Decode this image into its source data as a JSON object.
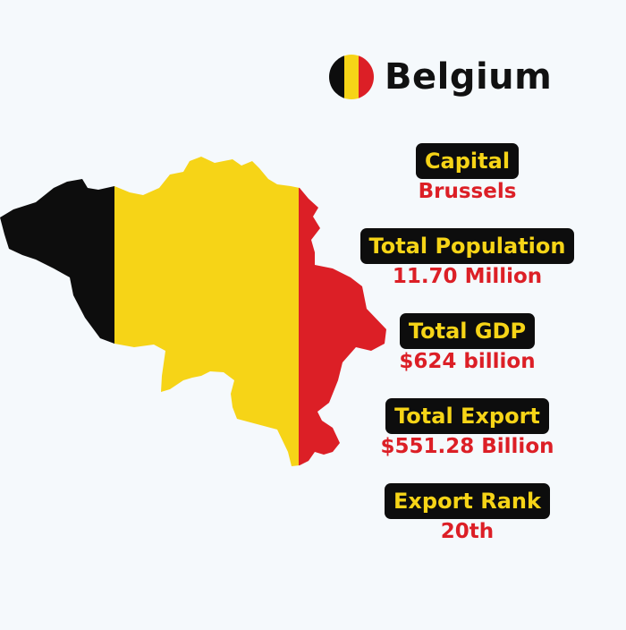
{
  "country": {
    "name": "Belgium",
    "flag_colors": [
      "#0d0d0d",
      "#f6d417",
      "#dc1f26"
    ]
  },
  "map": {
    "icon": "belgium-map-flag-icon",
    "colors": [
      "#0d0d0d",
      "#f6d417",
      "#dc1f26"
    ]
  },
  "stats": [
    {
      "label": "Capital",
      "value": "Brussels"
    },
    {
      "label": "Total Population",
      "value": "11.70 Million"
    },
    {
      "label": "Total GDP",
      "value": "$624 billion"
    },
    {
      "label": "Total Export",
      "value": "$551.28 Billion"
    },
    {
      "label": "Export Rank",
      "value": "20th"
    }
  ]
}
